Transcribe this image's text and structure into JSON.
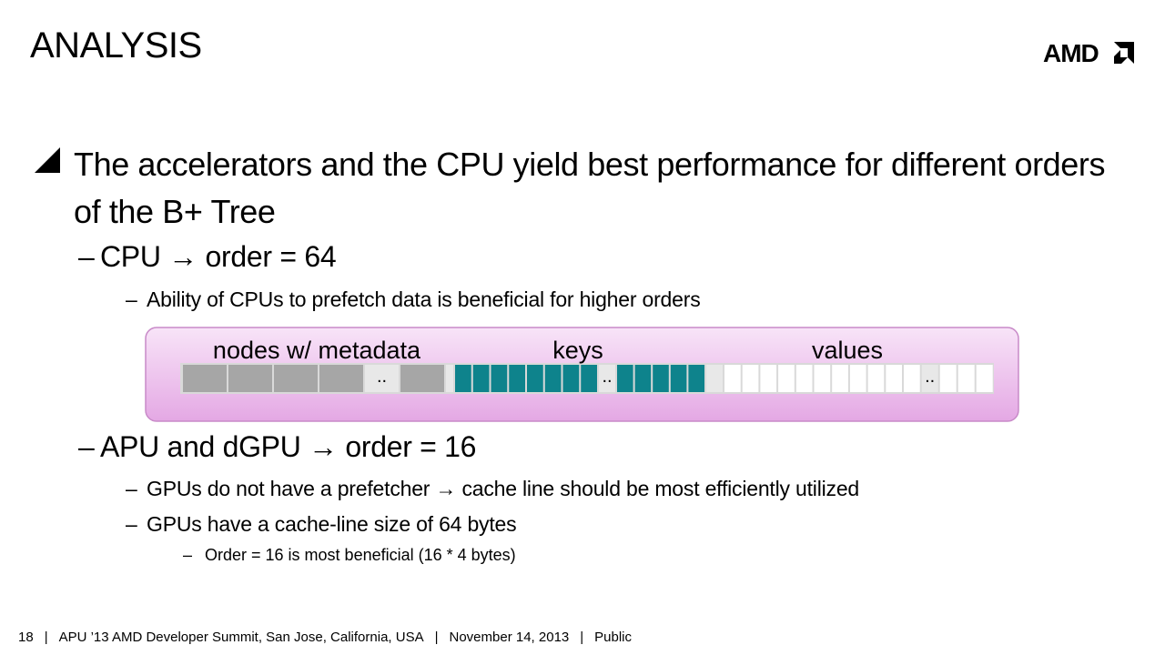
{
  "header": {
    "title": "ANALYSIS",
    "logo": "AMD"
  },
  "bullets": {
    "main": "The accelerators and the CPU yield best performance for different orders of the B+ Tree",
    "cpu": "CPU → order = 64",
    "cpu_sub": "Ability of CPUs to prefetch data is beneficial for higher orders",
    "gpu": "APU and dGPU → order = 16",
    "gpu_sub": [
      "GPUs do not have a prefetcher → cache line should be most efficiently utilized",
      "GPUs have a cache-line size of 64 bytes"
    ],
    "gpu_sub_sub": "Order = 16 is most beneficial (16 * 4 bytes)"
  },
  "diagram": {
    "labels": [
      "nodes w/ metadata",
      "keys",
      "values"
    ],
    "dots": [
      "..",
      "..",
      ".."
    ]
  },
  "footer": {
    "page": "18",
    "event": "APU ’13 AMD Developer Summit, San Jose, California, USA",
    "date": "November 14, 2013",
    "classification": "Public"
  }
}
